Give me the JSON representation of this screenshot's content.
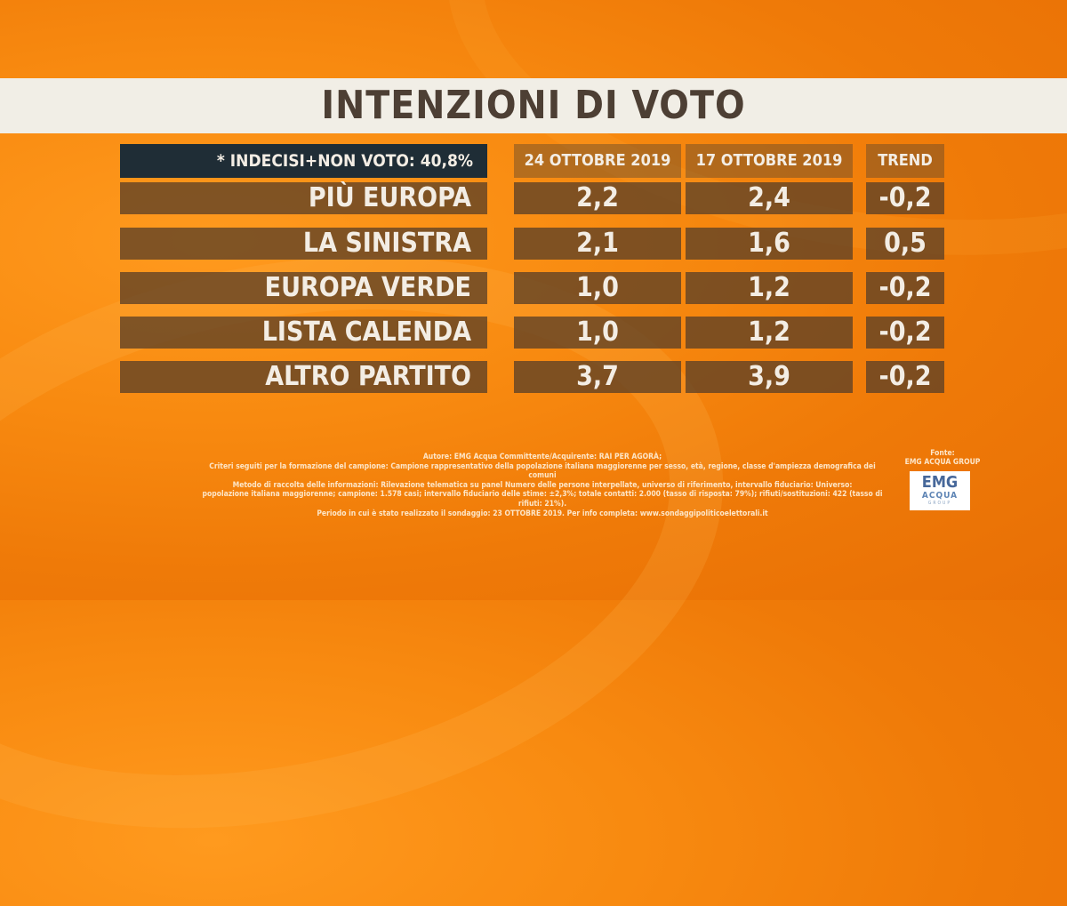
{
  "title": "INTENZIONI DI VOTO",
  "header": {
    "note": "* INDECISI+NON VOTO: 40,8%",
    "col1": "24 OTTOBRE 2019",
    "col2": "17 OTTOBRE 2019",
    "col3": "TREND"
  },
  "rows": [
    {
      "party": "PIÙ EUROPA",
      "v1": "2,2",
      "v2": "2,4",
      "trend": "-0,2"
    },
    {
      "party": "LA SINISTRA",
      "v1": "2,1",
      "v2": "1,6",
      "trend": "0,5"
    },
    {
      "party": "EUROPA VERDE",
      "v1": "1,0",
      "v2": "1,2",
      "trend": "-0,2"
    },
    {
      "party": "LISTA CALENDA",
      "v1": "1,0",
      "v2": "1,2",
      "trend": "-0,2"
    },
    {
      "party": "ALTRO PARTITO",
      "v1": "3,7",
      "v2": "3,9",
      "trend": "-0,2"
    }
  ],
  "credits": [
    "Autore: EMG Acqua Committente/Acquirente: RAI PER AGORÀ;",
    "Criteri seguiti per la formazione del campione: Campione rappresentativo della popolazione italiana maggiorenne per sesso, età, regione, classe d'ampiezza demografica dei comuni",
    "Metodo di raccolta delle informazioni: Rilevazione telematica su panel Numero delle persone interpellate, universo di riferimento, intervallo fiduciario: Universo:",
    "popolazione italiana maggiorenne; campione: 1.578 casi; intervallo fiduciario delle stime: ±2,3%; totale contatti: 2.000 (tasso di risposta: 79%); rifiuti/sostituzioni: 422 (tasso di rifiuti: 21%).",
    "Periodo in cui è stato realizzato il sondaggio: 23 OTTOBRE 2019. Per info completa: www.sondaggipoliticoelettorali.it"
  ],
  "source": {
    "label": "Fonte:",
    "name": "EMG ACQUA GROUP",
    "logo_line1": "EMG",
    "logo_line2": "ACQUA",
    "logo_line3": "GROUP"
  }
}
